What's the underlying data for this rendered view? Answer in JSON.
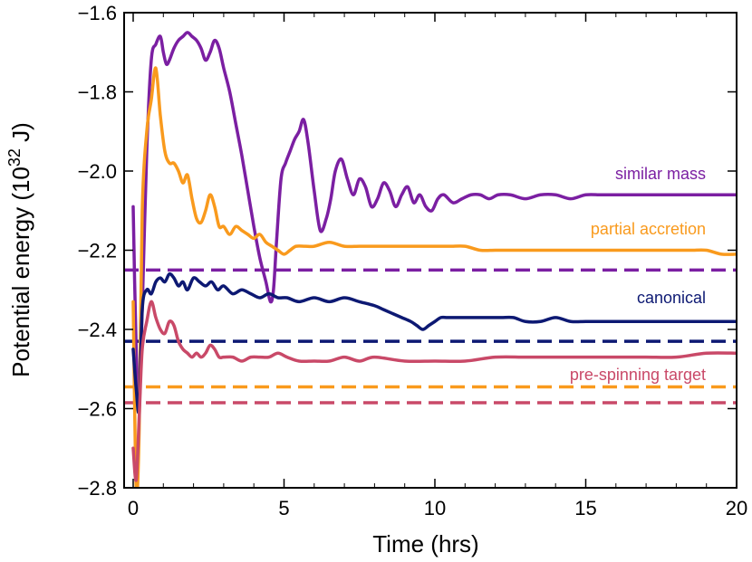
{
  "chart_data": {
    "type": "line",
    "title": "",
    "xlabel": "Time (hrs)",
    "ylabel_prefix": "Potential energy (10",
    "ylabel_exp": "32",
    "ylabel_suffix": " J)",
    "xlim": [
      -0.3,
      20
    ],
    "ylim": [
      -2.8,
      -1.6
    ],
    "xticks": [
      0,
      5,
      10,
      15,
      20
    ],
    "yticks": [
      -1.6,
      -1.8,
      -2.0,
      -2.2,
      -2.4,
      -2.6,
      -2.8
    ],
    "xtick_labels": [
      "0",
      "5",
      "10",
      "15",
      "20"
    ],
    "ytick_labels": [
      "−1.6",
      "−1.8",
      "−2.0",
      "−2.2",
      "−2.4",
      "−2.6",
      "−2.8"
    ],
    "series": [
      {
        "name": "similar mass",
        "color": "#7b1fa2",
        "reference_level": -2.25,
        "x": [
          0.0,
          0.1,
          0.2,
          0.3,
          0.45,
          0.6,
          0.75,
          0.9,
          1.0,
          1.1,
          1.2,
          1.35,
          1.5,
          1.65,
          1.8,
          1.95,
          2.1,
          2.25,
          2.4,
          2.55,
          2.7,
          2.85,
          3.0,
          3.2,
          3.4,
          3.6,
          3.8,
          4.0,
          4.2,
          4.4,
          4.55,
          4.65,
          4.75,
          4.9,
          5.05,
          5.2,
          5.35,
          5.5,
          5.65,
          5.8,
          6.0,
          6.2,
          6.4,
          6.55,
          6.7,
          6.9,
          7.1,
          7.3,
          7.5,
          7.7,
          7.9,
          8.1,
          8.3,
          8.5,
          8.7,
          8.9,
          9.1,
          9.3,
          9.5,
          9.7,
          9.9,
          10.1,
          10.3,
          10.6,
          10.9,
          11.2,
          11.5,
          11.8,
          12.1,
          12.5,
          13.0,
          13.5,
          14.0,
          14.5,
          15.0,
          15.5,
          16.0,
          16.5,
          17.0,
          17.5,
          18.0,
          18.5,
          19.0,
          19.5,
          20.0
        ],
        "y": [
          -2.09,
          -2.45,
          -2.56,
          -2.35,
          -1.95,
          -1.72,
          -1.68,
          -1.66,
          -1.7,
          -1.73,
          -1.72,
          -1.69,
          -1.67,
          -1.66,
          -1.65,
          -1.66,
          -1.67,
          -1.69,
          -1.72,
          -1.7,
          -1.67,
          -1.69,
          -1.74,
          -1.8,
          -1.88,
          -1.96,
          -2.05,
          -2.14,
          -2.22,
          -2.28,
          -2.33,
          -2.3,
          -2.18,
          -2.02,
          -1.98,
          -1.95,
          -1.92,
          -1.9,
          -1.87,
          -1.93,
          -2.05,
          -2.15,
          -2.12,
          -2.07,
          -2.0,
          -1.97,
          -2.02,
          -2.06,
          -2.02,
          -2.04,
          -2.09,
          -2.07,
          -2.03,
          -2.05,
          -2.09,
          -2.06,
          -2.04,
          -2.08,
          -2.06,
          -2.09,
          -2.1,
          -2.07,
          -2.06,
          -2.08,
          -2.07,
          -2.06,
          -2.06,
          -2.07,
          -2.06,
          -2.06,
          -2.07,
          -2.06,
          -2.06,
          -2.07,
          -2.06,
          -2.06,
          -2.06,
          -2.06,
          -2.06,
          -2.06,
          -2.06,
          -2.06,
          -2.06,
          -2.06,
          -2.06
        ]
      },
      {
        "name": "partial accretion",
        "color": "#f99a1d",
        "reference_level": -2.545,
        "x": [
          0.0,
          0.1,
          0.2,
          0.3,
          0.45,
          0.6,
          0.75,
          0.9,
          1.05,
          1.2,
          1.35,
          1.5,
          1.65,
          1.8,
          1.95,
          2.1,
          2.25,
          2.4,
          2.55,
          2.7,
          2.85,
          3.0,
          3.2,
          3.4,
          3.6,
          3.8,
          4.0,
          4.2,
          4.4,
          4.6,
          4.8,
          5.0,
          5.2,
          5.4,
          5.7,
          6.0,
          6.5,
          7.0,
          7.5,
          8.0,
          8.5,
          9.0,
          9.5,
          10.0,
          10.5,
          11.0,
          11.5,
          12.0,
          12.5,
          13.0,
          13.5,
          14.0,
          14.5,
          15.0,
          15.5,
          16.0,
          16.5,
          17.0,
          17.5,
          18.0,
          18.5,
          19.0,
          19.5,
          20.0
        ],
        "y": [
          -2.33,
          -2.8,
          -2.65,
          -2.1,
          -1.9,
          -1.82,
          -1.74,
          -1.86,
          -1.95,
          -1.98,
          -1.98,
          -2.0,
          -2.03,
          -2.01,
          -2.07,
          -2.12,
          -2.13,
          -2.1,
          -2.06,
          -2.09,
          -2.14,
          -2.14,
          -2.16,
          -2.14,
          -2.15,
          -2.16,
          -2.17,
          -2.16,
          -2.18,
          -2.19,
          -2.2,
          -2.21,
          -2.2,
          -2.19,
          -2.19,
          -2.19,
          -2.18,
          -2.19,
          -2.19,
          -2.19,
          -2.19,
          -2.19,
          -2.19,
          -2.19,
          -2.19,
          -2.19,
          -2.2,
          -2.2,
          -2.2,
          -2.2,
          -2.2,
          -2.2,
          -2.2,
          -2.2,
          -2.2,
          -2.2,
          -2.2,
          -2.2,
          -2.2,
          -2.2,
          -2.2,
          -2.2,
          -2.21,
          -2.21
        ]
      },
      {
        "name": "canonical",
        "color": "#0d1973",
        "reference_level": -2.43,
        "x": [
          0.0,
          0.1,
          0.2,
          0.3,
          0.45,
          0.6,
          0.75,
          0.9,
          1.05,
          1.2,
          1.35,
          1.5,
          1.65,
          1.8,
          2.0,
          2.2,
          2.4,
          2.6,
          2.8,
          3.0,
          3.3,
          3.6,
          3.9,
          4.2,
          4.5,
          4.8,
          5.1,
          5.5,
          6.0,
          6.5,
          7.0,
          7.5,
          8.0,
          8.3,
          8.6,
          8.9,
          9.2,
          9.4,
          9.6,
          9.8,
          10.0,
          10.2,
          10.4,
          10.6,
          10.9,
          11.2,
          11.5,
          11.8,
          12.2,
          12.6,
          13.0,
          13.5,
          14.0,
          14.5,
          15.0,
          15.5,
          16.0,
          16.5,
          17.0,
          17.5,
          18.0,
          18.5,
          19.0,
          19.5,
          20.0
        ],
        "y": [
          -2.45,
          -2.55,
          -2.6,
          -2.35,
          -2.3,
          -2.31,
          -2.28,
          -2.27,
          -2.28,
          -2.26,
          -2.27,
          -2.29,
          -2.28,
          -2.3,
          -2.27,
          -2.28,
          -2.29,
          -2.28,
          -2.3,
          -2.29,
          -2.31,
          -2.3,
          -2.31,
          -2.32,
          -2.31,
          -2.32,
          -2.32,
          -2.33,
          -2.32,
          -2.33,
          -2.32,
          -2.33,
          -2.34,
          -2.35,
          -2.36,
          -2.37,
          -2.38,
          -2.39,
          -2.4,
          -2.39,
          -2.38,
          -2.37,
          -2.37,
          -2.37,
          -2.37,
          -2.37,
          -2.37,
          -2.37,
          -2.37,
          -2.37,
          -2.38,
          -2.38,
          -2.37,
          -2.38,
          -2.38,
          -2.38,
          -2.38,
          -2.38,
          -2.38,
          -2.38,
          -2.38,
          -2.38,
          -2.38,
          -2.38,
          -2.38
        ]
      },
      {
        "name": "pre-spinning target",
        "color": "#c94968",
        "reference_level": -2.585,
        "x": [
          0.0,
          0.1,
          0.2,
          0.3,
          0.45,
          0.6,
          0.75,
          0.9,
          1.05,
          1.2,
          1.35,
          1.5,
          1.65,
          1.8,
          1.95,
          2.1,
          2.25,
          2.4,
          2.55,
          2.7,
          2.85,
          3.0,
          3.3,
          3.6,
          3.9,
          4.2,
          4.5,
          4.8,
          5.1,
          5.5,
          6.0,
          6.5,
          7.0,
          7.5,
          8.0,
          9.0,
          10.0,
          11.0,
          12.0,
          13.0,
          14.0,
          15.0,
          16.0,
          17.0,
          18.0,
          19.0,
          20.0
        ],
        "y": [
          -2.7,
          -2.78,
          -2.62,
          -2.45,
          -2.38,
          -2.33,
          -2.37,
          -2.4,
          -2.41,
          -2.38,
          -2.39,
          -2.43,
          -2.45,
          -2.46,
          -2.47,
          -2.46,
          -2.47,
          -2.46,
          -2.44,
          -2.45,
          -2.47,
          -2.47,
          -2.47,
          -2.48,
          -2.47,
          -2.47,
          -2.47,
          -2.46,
          -2.47,
          -2.48,
          -2.48,
          -2.48,
          -2.47,
          -2.48,
          -2.47,
          -2.48,
          -2.48,
          -2.48,
          -2.47,
          -2.47,
          -2.47,
          -2.47,
          -2.47,
          -2.47,
          -2.47,
          -2.46,
          -2.46
        ]
      }
    ]
  }
}
